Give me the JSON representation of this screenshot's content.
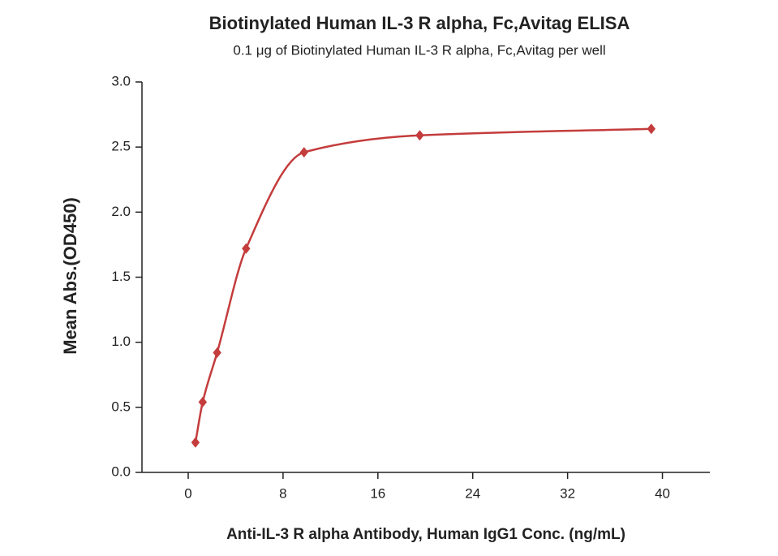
{
  "chart_data": {
    "type": "scatter",
    "title": "Biotinylated Human IL-3 R alpha, Fc,Avitag ELISA",
    "subtitle": "0.1 μg of Biotinylated Human IL-3 R alpha, Fc,Avitag per well",
    "x_label": "Anti-IL-3 R alpha Antibody, Human IgG1 Conc. (ng/mL)",
    "y_label": "Mean Abs.(OD450)",
    "x": [
      0.61,
      1.22,
      2.44,
      4.88,
      9.77,
      19.53,
      39.06
    ],
    "series": [
      {
        "color": "#c43c3c",
        "values": [
          0.23,
          0.54,
          0.92,
          1.72,
          2.46,
          2.59,
          2.64
        ]
      }
    ],
    "xlim": [
      -3.9,
      44
    ],
    "xticks": [
      0,
      8,
      16,
      24,
      32,
      40
    ],
    "ylim": [
      0,
      3
    ],
    "yticks": [
      {
        "value": 0,
        "label": "0.0"
      },
      0.5,
      {
        "value": 1,
        "label": "1.0"
      },
      1.5,
      {
        "value": 2,
        "label": "2.0"
      },
      2.5,
      {
        "value": 3,
        "label": "3.0"
      }
    ]
  }
}
